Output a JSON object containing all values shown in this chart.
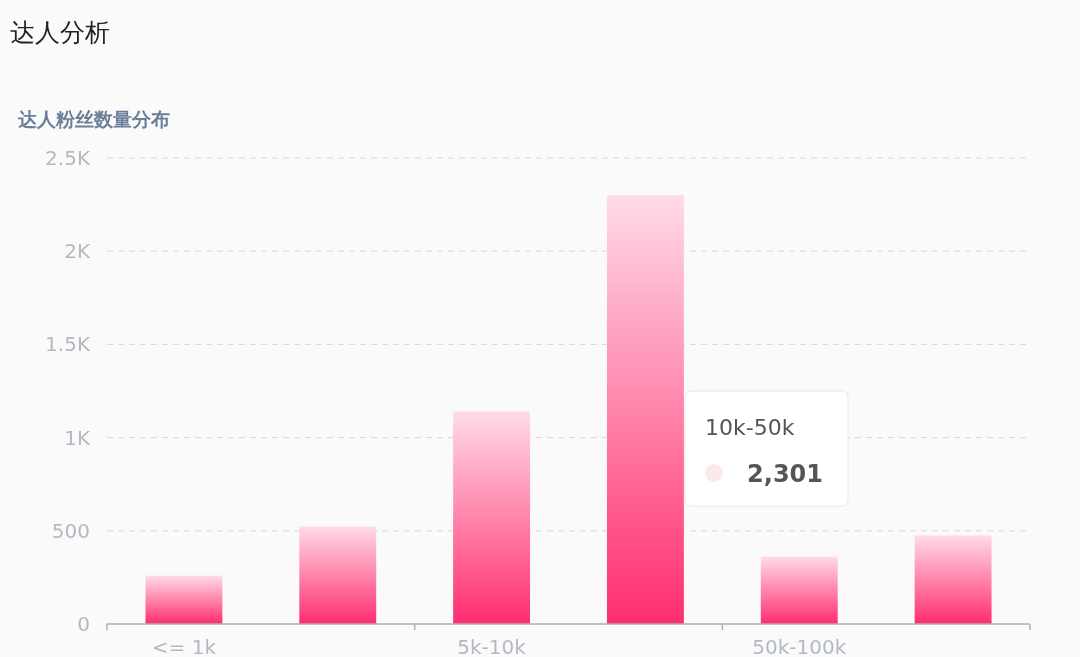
{
  "chart_data": {
    "type": "bar",
    "title": "达人分析",
    "subtitle": "达人粉丝数量分布",
    "categories": [
      "<= 1k",
      null,
      "5k-10k",
      null,
      "50k-100k",
      null
    ],
    "values": [
      259,
      523,
      1140,
      2301,
      361,
      475
    ],
    "color": "#ff2d6f",
    "ylim": [
      0,
      2500
    ],
    "yticks": [
      0,
      500,
      {
        "value": 1000,
        "label": "1K"
      },
      {
        "value": 1500,
        "label": "1.5K"
      },
      {
        "value": 2000,
        "label": "2K"
      },
      {
        "value": 2500,
        "label": "2.5K"
      }
    ],
    "grid": "y",
    "annotations": [
      "10k-50k",
      "2,301"
    ]
  }
}
